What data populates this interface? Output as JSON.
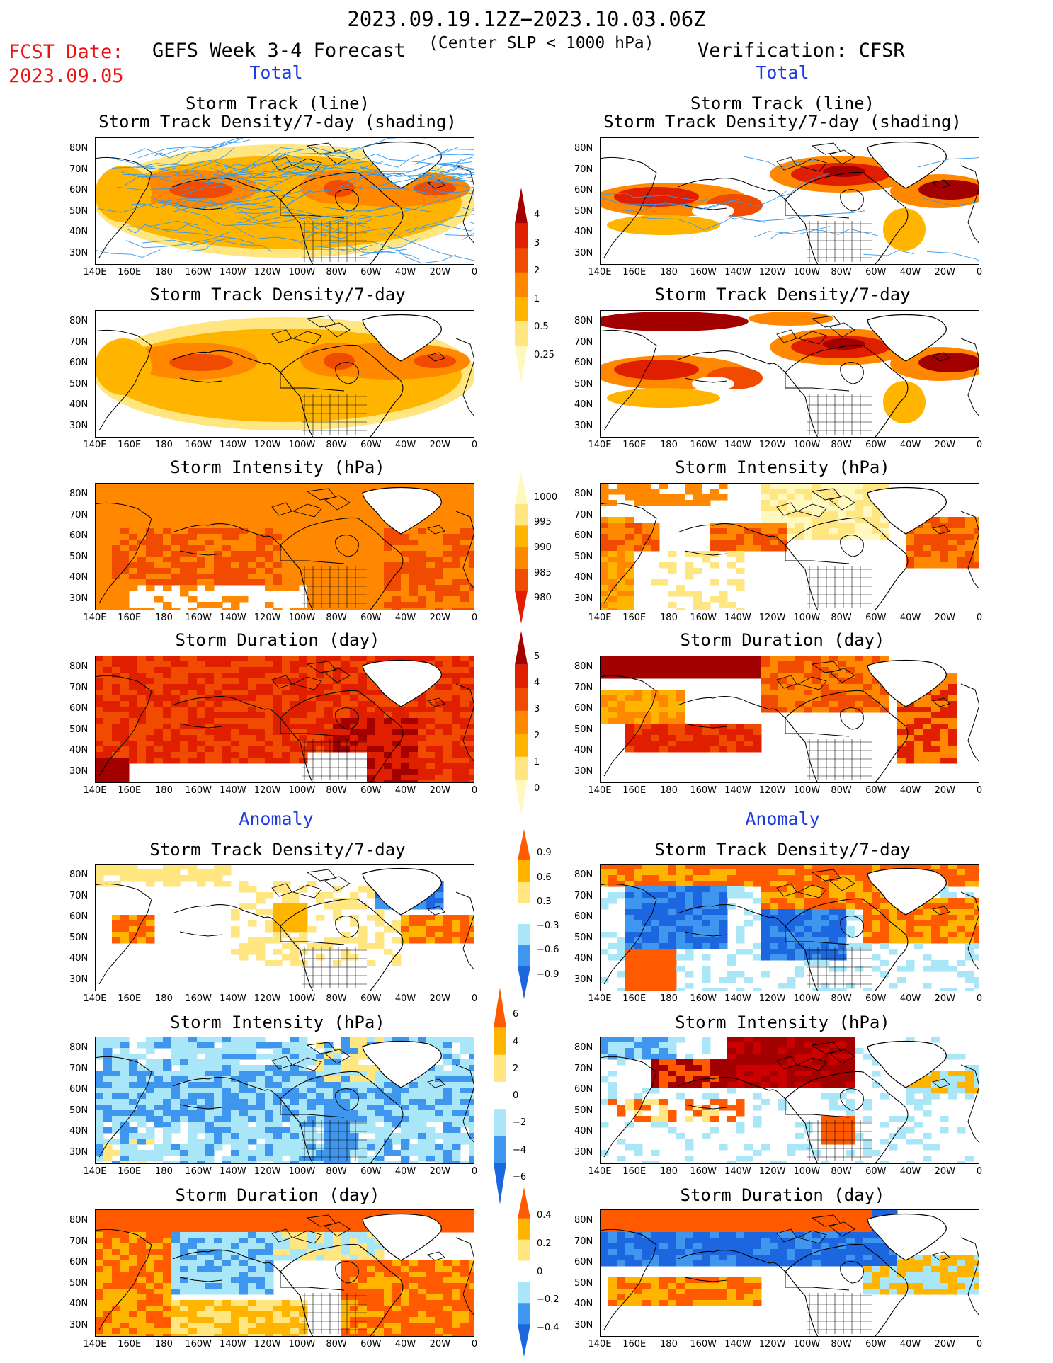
{
  "header": {
    "period": "2023.09.19.12Z−2023.10.03.06Z",
    "fcst_label": "FCST Date:",
    "fcst_date": "2023.09.05",
    "model_title": "GEFS Week 3-4 Forecast",
    "criterion": "(Center SLP < 1000 hPa)",
    "verification": "Verification: CFSR"
  },
  "sections": {
    "total": "Total",
    "anomaly": "Anomaly"
  },
  "panel_titles": {
    "track_line": "Storm Track (line)",
    "track_shading": "Storm Track Density/7-day (shading)",
    "density": "Storm Track Density/7-day",
    "intensity": "Storm Intensity (hPa)",
    "duration": "Storm Duration (day)"
  },
  "axes": {
    "lat_labels": [
      "80N",
      "70N",
      "60N",
      "50N",
      "40N",
      "30N"
    ],
    "lon_labels": [
      "140E",
      "160E",
      "180",
      "160W",
      "140W",
      "120W",
      "100W",
      "80W",
      "60W",
      "40W",
      "20W",
      "0"
    ]
  },
  "colorbars": {
    "density_total": [
      "4",
      "3",
      "2",
      "1",
      "0.5",
      "0.25"
    ],
    "intensity_total": [
      "1000",
      "995",
      "990",
      "985",
      "980"
    ],
    "duration_total": [
      "5",
      "4",
      "3",
      "2",
      "1",
      "0"
    ],
    "density_anom": [
      "0.9",
      "0.6",
      "0.3",
      "−0.3",
      "−0.6",
      "−0.9"
    ],
    "intensity_anom": [
      "6",
      "4",
      "2",
      "0",
      "−2",
      "−4",
      "−6"
    ],
    "duration_anom": [
      "0.4",
      "0.2",
      "0",
      "−0.2",
      "−0.4"
    ]
  },
  "colors": {
    "total_scale": [
      "#fff9bf",
      "#ffe680",
      "#ffb500",
      "#ff8800",
      "#f04b00",
      "#e01e00",
      "#a30000"
    ],
    "anom_scale": [
      "#1c66e0",
      "#3f96ee",
      "#a8e6f8",
      "#ffffff",
      "#ffe680",
      "#ffb500",
      "#ff5a00"
    ],
    "track_line": "#3399ee",
    "fcst_red": "#ee1111",
    "section_blue": "#1d3be0"
  }
}
